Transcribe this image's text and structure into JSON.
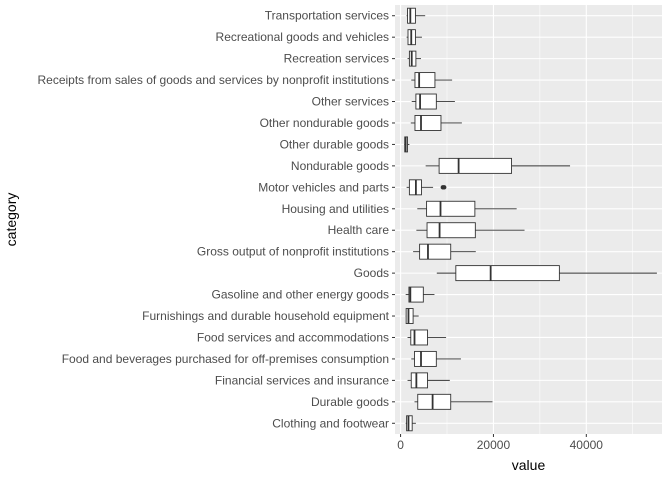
{
  "chart_data": {
    "type": "boxplot",
    "orientation": "horizontal",
    "xlabel": "value",
    "ylabel": "category",
    "xlim": [
      -1200,
      56300
    ],
    "x_ticks": [
      0,
      20000,
      40000
    ],
    "x_tick_labels": [
      "0",
      "20000",
      "40000"
    ],
    "grid": true,
    "legend": "none",
    "colors": {
      "panel": "#ebebeb",
      "grid_major": "#ffffff",
      "box_fill": "#ffffff",
      "box_stroke": "#333333",
      "outlier": "#333333",
      "tick_text": "#4d4d4d",
      "title_text": "#000000"
    },
    "categories": [
      "Clothing and footwear",
      "Durable goods",
      "Financial services and insurance",
      "Food and beverages purchased for off-premises consumption",
      "Food services and accommodations",
      "Furnishings and durable household equipment",
      "Gasoline and other energy goods",
      "Goods",
      "Gross output of nonprofit institutions",
      "Health care",
      "Housing and utilities",
      "Motor vehicles and parts",
      "Nondurable goods",
      "Other durable goods",
      "Other nondurable goods",
      "Other services",
      "Receipts from sales of goods and services by nonprofit institutions",
      "Recreation services",
      "Recreational goods and vehicles",
      "Transportation services"
    ],
    "boxes": [
      {
        "category": "Clothing and footwear",
        "min": 1100,
        "q1": 1300,
        "median": 1700,
        "q3": 2500,
        "max": 3300,
        "outliers": []
      },
      {
        "category": "Durable goods",
        "min": 3000,
        "q1": 3700,
        "median": 6900,
        "q3": 10800,
        "max": 19800,
        "outliers": []
      },
      {
        "category": "Financial services and insurance",
        "min": 1500,
        "q1": 2300,
        "median": 3400,
        "q3": 5800,
        "max": 10600,
        "outliers": []
      },
      {
        "category": "Food and beverages purchased for off-premises consumption",
        "min": 2300,
        "q1": 3000,
        "median": 4400,
        "q3": 7700,
        "max": 13000,
        "outliers": []
      },
      {
        "category": "Food services and accommodations",
        "min": 1500,
        "q1": 2200,
        "median": 3000,
        "q3": 5800,
        "max": 9800,
        "outliers": []
      },
      {
        "category": "Furnishings and durable household equipment",
        "min": 1100,
        "q1": 1200,
        "median": 1700,
        "q3": 2700,
        "max": 3900,
        "outliers": []
      },
      {
        "category": "Gasoline and other energy goods",
        "min": 1100,
        "q1": 1800,
        "median": 2100,
        "q3": 4900,
        "max": 7300,
        "outliers": []
      },
      {
        "category": "Goods",
        "min": 7800,
        "q1": 11900,
        "median": 19400,
        "q3": 34200,
        "max": 55200,
        "outliers": []
      },
      {
        "category": "Gross output of nonprofit institutions",
        "min": 2700,
        "q1": 4100,
        "median": 5900,
        "q3": 10800,
        "max": 16200,
        "outliers": []
      },
      {
        "category": "Health care",
        "min": 3400,
        "q1": 5700,
        "median": 8400,
        "q3": 16100,
        "max": 26700,
        "outliers": []
      },
      {
        "category": "Housing and utilities",
        "min": 3600,
        "q1": 5600,
        "median": 8600,
        "q3": 16000,
        "max": 25000,
        "outliers": []
      },
      {
        "category": "Motor vehicles and parts",
        "min": 1300,
        "q1": 1900,
        "median": 3300,
        "q3": 4500,
        "max": 7000,
        "outliers": [
          9100,
          9400
        ]
      },
      {
        "category": "Nondurable goods",
        "min": 5400,
        "q1": 8300,
        "median": 12500,
        "q3": 23900,
        "max": 36500,
        "outliers": []
      },
      {
        "category": "Other durable goods",
        "min": 800,
        "q1": 900,
        "median": 1100,
        "q3": 1500,
        "max": 1900,
        "outliers": []
      },
      {
        "category": "Other nondurable goods",
        "min": 2200,
        "q1": 3100,
        "median": 4400,
        "q3": 8700,
        "max": 13200,
        "outliers": []
      },
      {
        "category": "Other services",
        "min": 2400,
        "q1": 3300,
        "median": 4200,
        "q3": 7700,
        "max": 11700,
        "outliers": []
      },
      {
        "category": "Receipts from sales of goods and services by nonprofit institutions",
        "min": 2300,
        "q1": 3100,
        "median": 4000,
        "q3": 7400,
        "max": 11100,
        "outliers": []
      },
      {
        "category": "Recreation services",
        "min": 1500,
        "q1": 1900,
        "median": 2400,
        "q3": 3300,
        "max": 4400,
        "outliers": []
      },
      {
        "category": "Recreational goods and vehicles",
        "min": 1300,
        "q1": 1600,
        "median": 2300,
        "q3": 3200,
        "max": 4600,
        "outliers": []
      },
      {
        "category": "Transportation services",
        "min": 1300,
        "q1": 1500,
        "median": 2100,
        "q3": 3200,
        "max": 5300,
        "outliers": []
      }
    ]
  }
}
